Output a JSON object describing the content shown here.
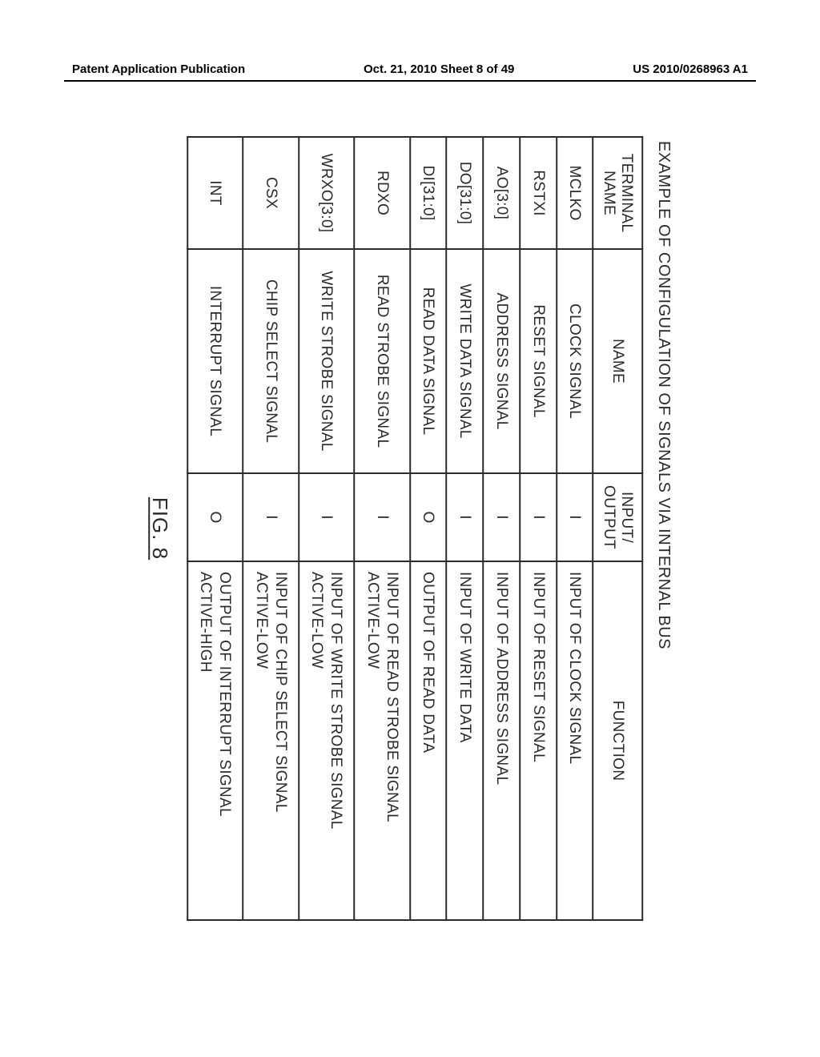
{
  "header": {
    "left": "Patent Application Publication",
    "center": "Oct. 21, 2010  Sheet 8 of 49",
    "right": "US 2010/0268963 A1"
  },
  "title": "EXAMPLE OF CONFIGULATION OF SIGNALS VIA INTERNAL BUS",
  "figure_label": "FIG. 8",
  "table": {
    "columns": {
      "terminal": {
        "line1": "TERMINAL",
        "line2": "NAME"
      },
      "name": "NAME",
      "io": {
        "line1": "INPUT/",
        "line2": "OUTPUT"
      },
      "function": "FUNCTION"
    },
    "rows": [
      {
        "terminal": "MCLKO",
        "name": "CLOCK SIGNAL",
        "io": "I",
        "func": "INPUT OF CLOCK SIGNAL"
      },
      {
        "terminal": "RSTXI",
        "name": "RESET SIGNAL",
        "io": "I",
        "func": "INPUT OF RESET SIGNAL"
      },
      {
        "terminal": "AO[3:0]",
        "name": "ADDRESS SIGNAL",
        "io": "I",
        "func": "INPUT OF ADDRESS SIGNAL"
      },
      {
        "terminal": "DO[31:0]",
        "name": "WRITE DATA SIGNAL",
        "io": "I",
        "func": "INPUT OF WRITE DATA"
      },
      {
        "terminal": "DI[31:0]",
        "name": "READ DATA SIGNAL",
        "io": "O",
        "func": "OUTPUT OF READ DATA"
      },
      {
        "terminal": "RDXO",
        "name": "READ STROBE SIGNAL",
        "io": "I",
        "func_l1": "INPUT OF READ STROBE SIGNAL",
        "func_l2": "ACTIVE-LOW"
      },
      {
        "terminal": "WRXO[3:0]",
        "name": "WRITE STROBE SIGNAL",
        "io": "I",
        "func_l1": "INPUT OF WRITE STROBE SIGNAL",
        "func_l2": "ACTIVE-LOW"
      },
      {
        "terminal": "CSX",
        "name": "CHIP SELECT SIGNAL",
        "io": "I",
        "func_l1": "INPUT OF CHIP SELECT SIGNAL",
        "func_l2": "ACTIVE-LOW"
      },
      {
        "terminal": "INT",
        "name": "INTERRUPT SIGNAL",
        "io": "O",
        "func_l1": "OUTPUT OF INTERRUPT SIGNAL",
        "func_l2": "ACTIVE-HIGH"
      }
    ]
  },
  "colors": {
    "page_bg": "#ffffff",
    "text": "#2b2b2b",
    "border": "#2b2b2b"
  }
}
